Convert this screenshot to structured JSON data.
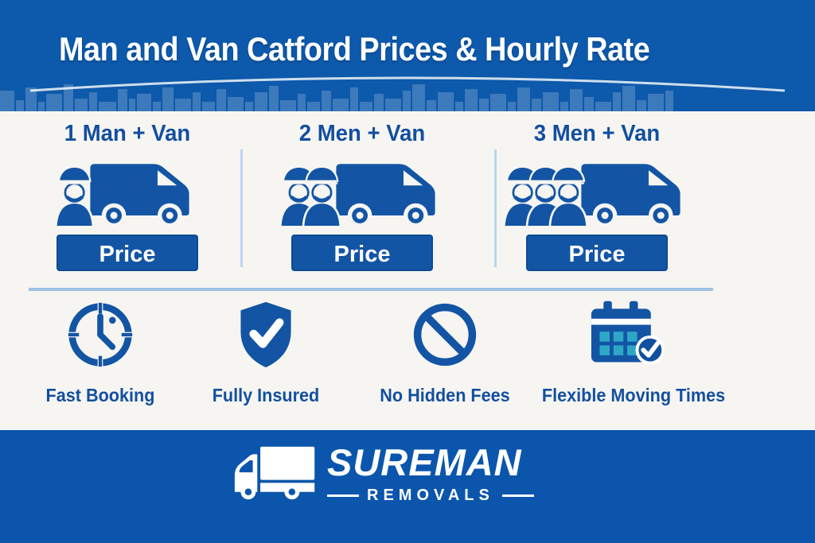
{
  "header": {
    "title": "Man and Van Catford Prices & Hourly Rate"
  },
  "pricing": {
    "columns": [
      {
        "label": "1 Man + Van",
        "icon": "one-man-van-icon",
        "button_label": "Price"
      },
      {
        "label": "2 Men + Van",
        "icon": "two-men-van-icon",
        "button_label": "Price"
      },
      {
        "label": "3 Men + Van",
        "icon": "three-men-van-icon",
        "button_label": "Price"
      }
    ]
  },
  "features": [
    {
      "icon": "clock-icon",
      "label": "Fast Booking"
    },
    {
      "icon": "shield-check-icon",
      "label": "Fully Insured"
    },
    {
      "icon": "no-entry-icon",
      "label": "No Hidden Fees"
    },
    {
      "icon": "calendar-check-icon",
      "label": "Flexible Moving Times"
    }
  ],
  "footer": {
    "brand": "SUREMAN",
    "tagline": "REMOVALS"
  },
  "colors": {
    "primary_blue": "#0d59ab",
    "footer_blue": "#0b56ac",
    "icon_blue": "#1355a4",
    "heading_blue": "#134f9e",
    "divider_light_blue": "#9fc3e4",
    "teal_accent": "#2ea7c7",
    "background_offwhite": "#f6f5f2",
    "text_white": "#ffffff"
  }
}
